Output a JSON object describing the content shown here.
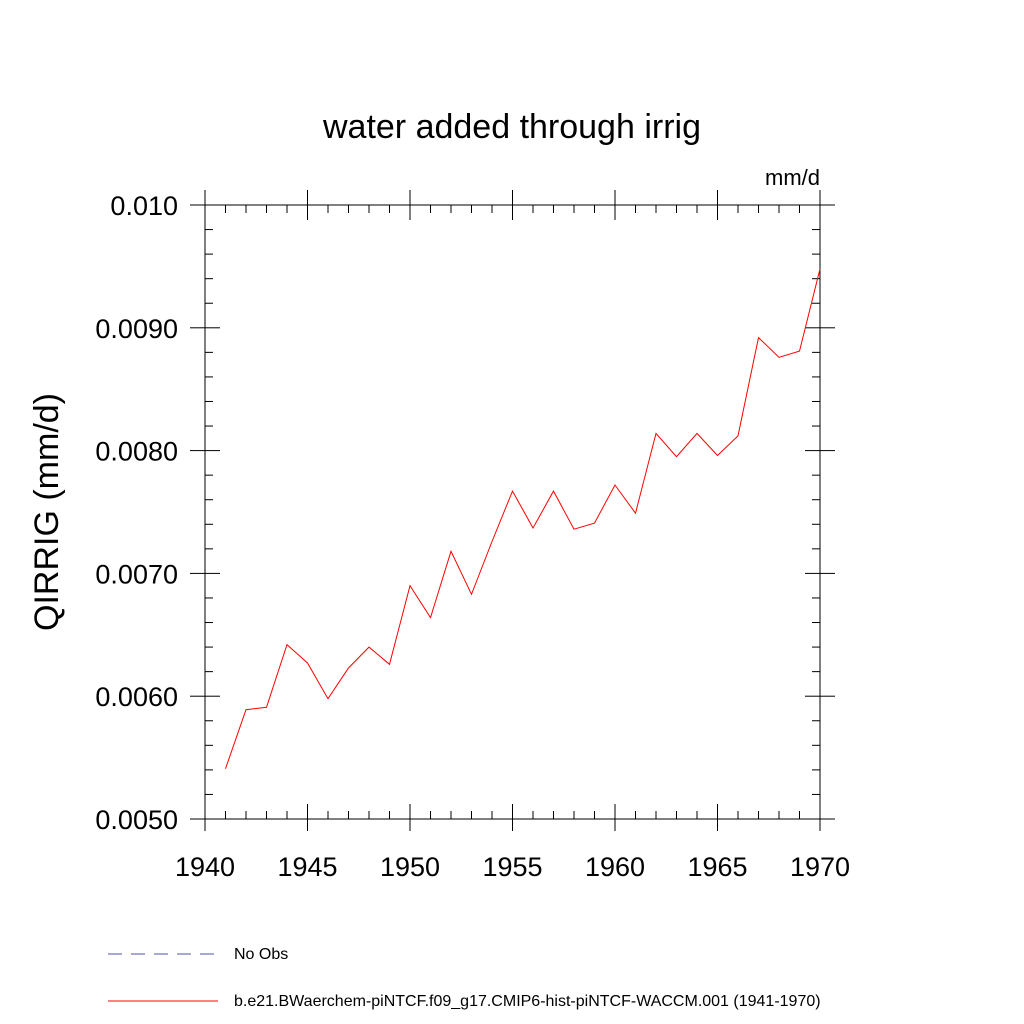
{
  "chart_data": {
    "type": "line",
    "title": "water added through irrig",
    "units": "mm/d",
    "ylabel": "QIRRIG  (mm/d)",
    "xlabel": "",
    "xlim": [
      1940,
      1970
    ],
    "ylim": [
      0.005,
      0.01
    ],
    "x_ticks": [
      1940,
      1945,
      1950,
      1955,
      1960,
      1965,
      1970
    ],
    "x_tick_labels": [
      "1940",
      "1945",
      "1950",
      "1955",
      "1960",
      "1965",
      "1970"
    ],
    "y_ticks": [
      0.005,
      0.006,
      0.007,
      0.008,
      0.009,
      0.01
    ],
    "y_tick_labels": [
      "0.0050",
      "0.0060",
      "0.0070",
      "0.0080",
      "0.0090",
      "0.010"
    ],
    "x": [
      1941,
      1942,
      1943,
      1944,
      1945,
      1946,
      1947,
      1948,
      1949,
      1950,
      1951,
      1952,
      1953,
      1954,
      1955,
      1956,
      1957,
      1958,
      1959,
      1960,
      1961,
      1962,
      1963,
      1964,
      1965,
      1966,
      1967,
      1968,
      1969,
      1970
    ],
    "series": [
      {
        "name": "b.e21.BWaerchem-piNTCF.f09_g17.CMIP6-hist-piNTCF-WACCM.001 (1941-1970)",
        "color": "#ff0000",
        "dash": "solid",
        "values": [
          0.00541,
          0.00589,
          0.00591,
          0.00642,
          0.00627,
          0.00598,
          0.00623,
          0.0064,
          0.00626,
          0.0069,
          0.00664,
          0.00718,
          0.00683,
          0.00726,
          0.00767,
          0.00737,
          0.00767,
          0.00736,
          0.00741,
          0.00772,
          0.00749,
          0.00814,
          0.00795,
          0.00814,
          0.00796,
          0.00812,
          0.00892,
          0.00876,
          0.00881,
          0.00948
        ]
      }
    ],
    "legend": {
      "placement": "bottom",
      "entries": [
        {
          "label": "No Obs",
          "color": "#5050a0",
          "dash": "dashed"
        },
        {
          "label": "b.e21.BWaerchem-piNTCF.f09_g17.CMIP6-hist-piNTCF-WACCM.001 (1941-1970)",
          "color": "#ff0000",
          "dash": "solid"
        }
      ]
    }
  }
}
